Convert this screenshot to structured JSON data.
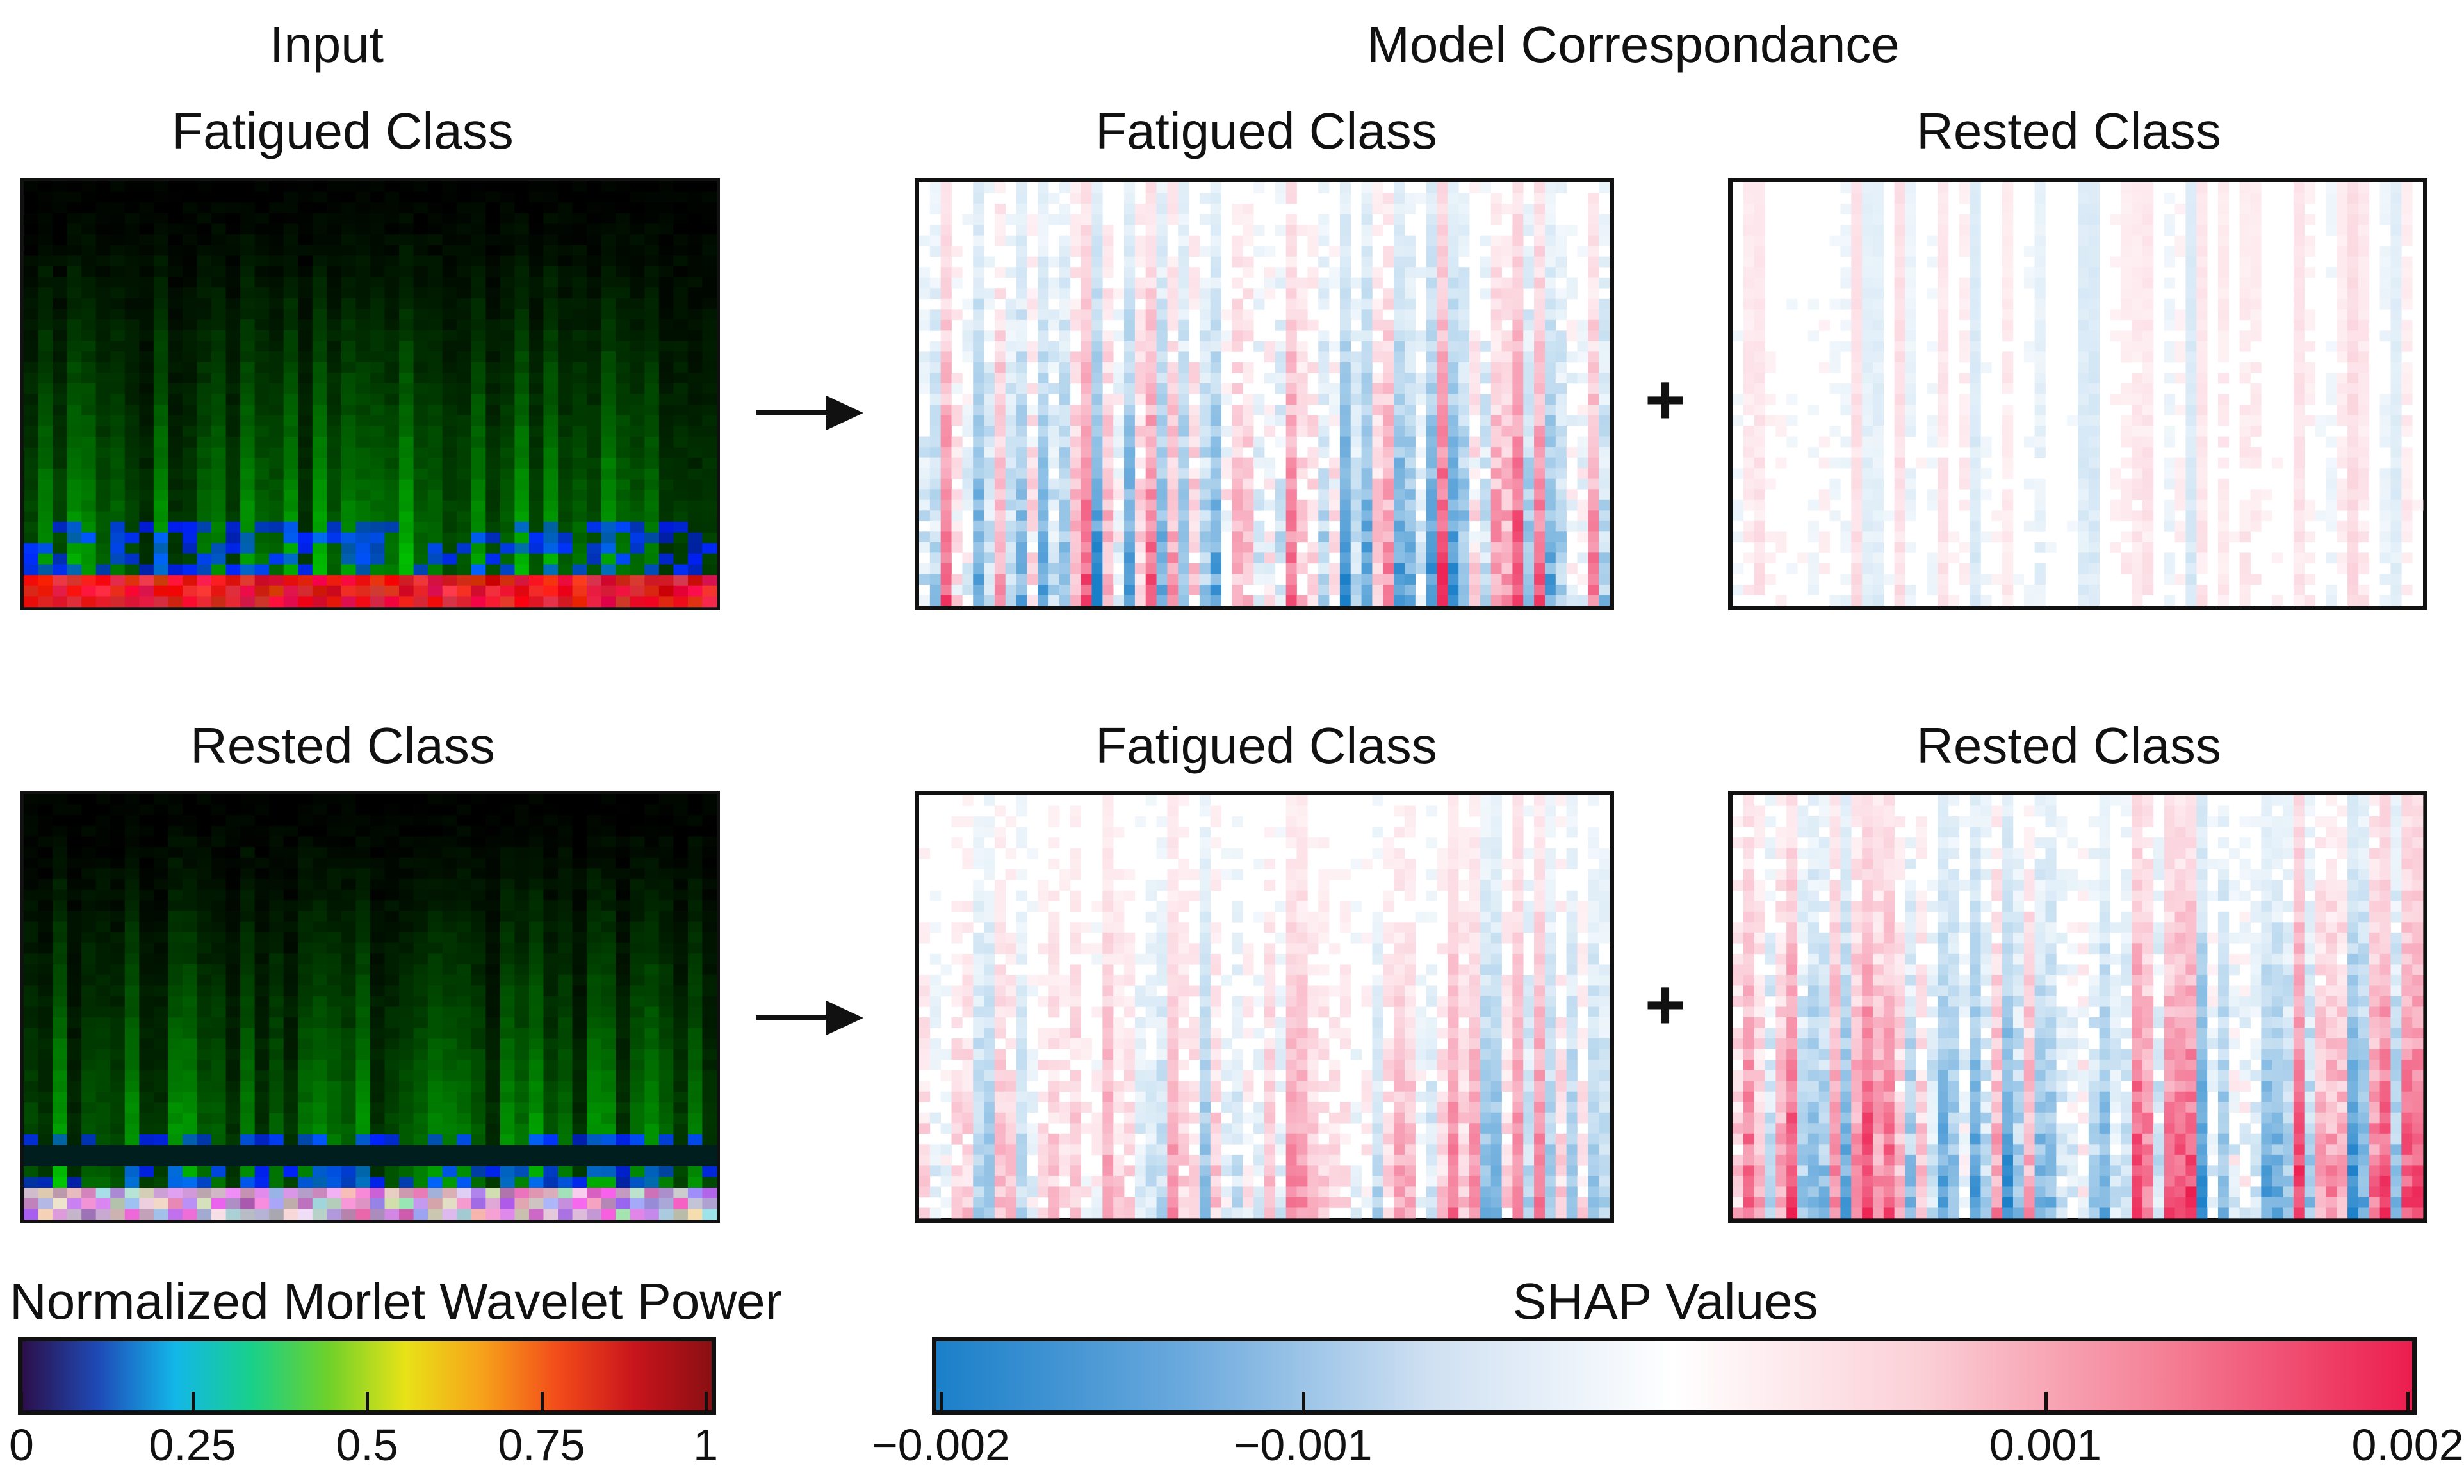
{
  "headings": {
    "input": "Input",
    "model": "Model Correspondance"
  },
  "input_panels": [
    {
      "title": "Fatigued Class",
      "type": "fatigued"
    },
    {
      "title": "Rested Class",
      "type": "rested"
    }
  ],
  "shap_panels": {
    "row1": [
      {
        "title": "Fatigued Class",
        "intensity": "strong"
      },
      {
        "title": "Rested Class",
        "intensity": "faint"
      }
    ],
    "row2": [
      {
        "title": "Fatigued Class",
        "intensity": "medium"
      },
      {
        "title": "Rested Class",
        "intensity": "strong"
      }
    ]
  },
  "operators": {
    "arrow": "→",
    "plus": "+"
  },
  "colorbars": {
    "wavelet": {
      "title": "Normalized Morlet Wavelet Power",
      "ticks": [
        "0",
        "0.25",
        "0.5",
        "0.75",
        "1"
      ],
      "range": [
        0,
        1
      ],
      "colors": [
        "#2b0f4a",
        "#1e4bb8",
        "#13b7e8",
        "#19d08a",
        "#6fd12a",
        "#e8e218",
        "#f7a21a",
        "#f24b1a",
        "#c8141c",
        "#8a0f12"
      ]
    },
    "shap": {
      "title": "SHAP Values",
      "ticks": [
        "−0.002",
        "−0.001",
        "0.001",
        "0.002"
      ],
      "range": [
        -0.002,
        0.002
      ],
      "colors": [
        "#1a7fc9",
        "#6aa9dd",
        "#cfe0f2",
        "#ffffff",
        "#fbd0d7",
        "#f47f95",
        "#ec1d4f"
      ]
    }
  }
}
